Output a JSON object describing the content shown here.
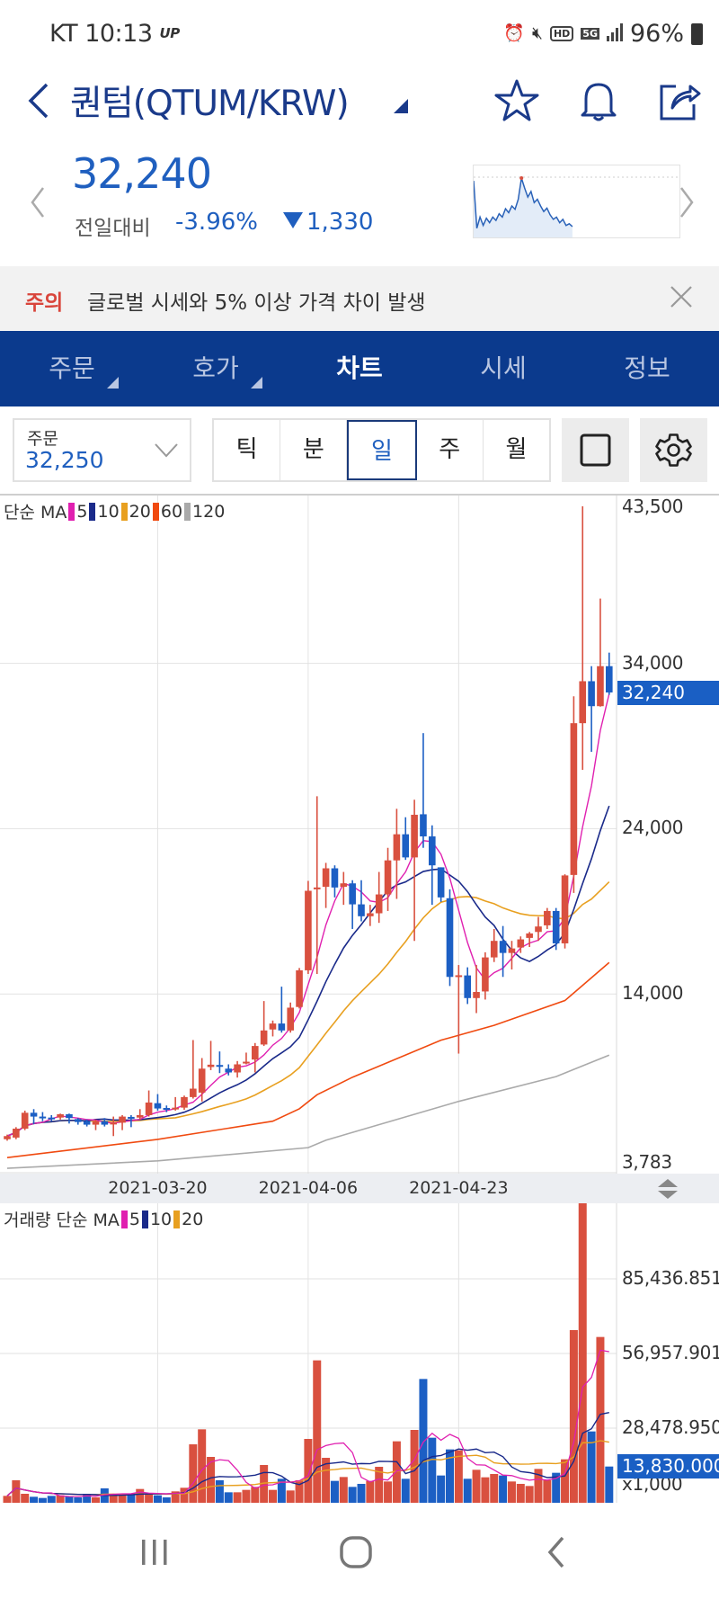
{
  "status_bar": {
    "carrier": "KT",
    "time": "10:13",
    "badge": "UP",
    "battery": "96%",
    "icons": [
      "alarm-icon",
      "mute-icon",
      "hd-icon",
      "5g-icon",
      "signal-icon",
      "battery-icon"
    ],
    "hd_label": "HD",
    "network_label": "5G"
  },
  "header": {
    "title": "퀀텀(QTUM/KRW)"
  },
  "quote": {
    "price": "32,240",
    "change_label": "전일대비",
    "change_pct": "-3.96%",
    "change_abs": "1,330",
    "direction": "down",
    "sparkline": [
      0.95,
      0.1,
      0.3,
      0.15,
      0.28,
      0.2,
      0.3,
      0.24,
      0.36,
      0.3,
      0.45,
      0.38,
      0.5,
      0.44,
      0.62,
      1.0,
      0.82,
      0.66,
      0.76,
      0.56,
      0.62,
      0.5,
      0.4,
      0.46,
      0.34,
      0.26,
      0.3,
      0.2,
      0.26,
      0.15,
      0.18,
      0.13
    ],
    "sparkline_fill": 0.48
  },
  "notice": {
    "tag": "주의",
    "message": "글로벌 시세와 5% 이상 가격 차이 발생"
  },
  "tabs": [
    {
      "label": "주문",
      "has_menu": true
    },
    {
      "label": "호가",
      "has_menu": true
    },
    {
      "label": "차트",
      "active": true
    },
    {
      "label": "시세"
    },
    {
      "label": "정보"
    }
  ],
  "toolbar": {
    "order_label": "주문",
    "order_value": "32,250",
    "periods": [
      "틱",
      "분",
      "일",
      "주",
      "월"
    ],
    "active_period": "일"
  },
  "colors": {
    "up": "#d9503f",
    "down": "#1c5fc4",
    "ma5": "#e020b0",
    "ma10": "#1a2a8a",
    "ma20": "#e8a020",
    "ma60": "#f04a10",
    "ma120": "#aaaaaa",
    "accent": "#0b3a8d"
  },
  "chart_data": [
    {
      "type": "candlestick",
      "legend_title": "단순 MA",
      "legend": [
        {
          "label": "5",
          "key": "ma5"
        },
        {
          "label": "10",
          "key": "ma10"
        },
        {
          "label": "20",
          "key": "ma20"
        },
        {
          "label": "60",
          "key": "ma60"
        },
        {
          "label": "120",
          "key": "ma120"
        }
      ],
      "ylim": [
        3129,
        44154
      ],
      "y_ticks": [
        {
          "label": "43,500",
          "value": 43500
        },
        {
          "label": "34,000",
          "value": 34000
        },
        {
          "label": "24,000",
          "value": 24000
        },
        {
          "label": "14,000",
          "value": 14000
        },
        {
          "label": "3,783",
          "value": 3783
        }
      ],
      "grid_values": [
        34000,
        24000,
        14000
      ],
      "current_label": "32,240",
      "current_value": 32240,
      "x_labels": [
        {
          "label": "2021-03-20",
          "index": 17
        },
        {
          "label": "2021-04-06",
          "index": 34
        },
        {
          "label": "2021-04-23",
          "index": 51
        }
      ],
      "ohlc": [
        [
          5210,
          5490,
          5120,
          5400
        ],
        [
          5310,
          5940,
          5210,
          5850
        ],
        [
          5850,
          6940,
          5760,
          6810
        ],
        [
          6810,
          7030,
          6120,
          6580
        ],
        [
          6580,
          6850,
          6300,
          6520
        ],
        [
          6520,
          6670,
          6300,
          6450
        ],
        [
          6520,
          6760,
          6400,
          6720
        ],
        [
          6720,
          6760,
          6160,
          6490
        ],
        [
          6430,
          6490,
          6090,
          6250
        ],
        [
          6300,
          6400,
          5980,
          6090
        ],
        [
          6090,
          6400,
          5760,
          6300
        ],
        [
          6300,
          6490,
          5980,
          6090
        ],
        [
          6120,
          6580,
          5400,
          6210
        ],
        [
          6210,
          6670,
          5760,
          6580
        ],
        [
          6560,
          6670,
          5940,
          6490
        ],
        [
          6520,
          7030,
          6400,
          6670
        ],
        [
          6670,
          8160,
          6580,
          7430
        ],
        [
          7390,
          7940,
          6940,
          7070
        ],
        [
          7100,
          7250,
          6850,
          7030
        ],
        [
          7030,
          7760,
          6940,
          7120
        ],
        [
          7120,
          7850,
          6990,
          7760
        ],
        [
          7760,
          11210,
          7670,
          8270
        ],
        [
          8030,
          10120,
          7490,
          9480
        ],
        [
          9580,
          11160,
          9390,
          9720
        ],
        [
          9700,
          10520,
          9210,
          9630
        ],
        [
          9480,
          9740,
          9070,
          9250
        ],
        [
          9250,
          9940,
          8940,
          9740
        ],
        [
          9790,
          10450,
          9740,
          9900
        ],
        [
          10030,
          11030,
          9250,
          10850
        ],
        [
          10940,
          13570,
          10850,
          11790
        ],
        [
          11850,
          12390,
          11430,
          12210
        ],
        [
          12210,
          14440,
          11660,
          11790
        ],
        [
          11790,
          13480,
          11660,
          13170
        ],
        [
          13210,
          15570,
          13120,
          15430
        ],
        [
          15430,
          20840,
          15210,
          20240
        ],
        [
          20330,
          25960,
          15210,
          20440
        ],
        [
          20480,
          21930,
          19200,
          21600
        ],
        [
          21600,
          21780,
          19840,
          20440
        ],
        [
          20480,
          21380,
          19390,
          20690
        ],
        [
          20690,
          20880,
          17930,
          19420
        ],
        [
          19420,
          20880,
          18390,
          18700
        ],
        [
          18700,
          19390,
          18110,
          18880
        ],
        [
          18880,
          21380,
          18300,
          20020
        ],
        [
          20020,
          22840,
          19020,
          22080
        ],
        [
          22080,
          25200,
          19750,
          23660
        ],
        [
          23660,
          24690,
          22110,
          22260
        ],
        [
          22260,
          25750,
          17210,
          24840
        ],
        [
          24870,
          29780,
          22840,
          23530
        ],
        [
          23530,
          24200,
          19390,
          21780
        ],
        [
          21660,
          21660,
          19570,
          19840
        ],
        [
          19790,
          20330,
          14480,
          15030
        ],
        [
          15060,
          15750,
          10390,
          15130
        ],
        [
          15120,
          15610,
          13390,
          13750
        ],
        [
          13750,
          15750,
          12840,
          14120
        ],
        [
          14150,
          16520,
          13660,
          16210
        ],
        [
          16210,
          17930,
          15930,
          17210
        ],
        [
          17210,
          18110,
          15030,
          16480
        ],
        [
          16480,
          17210,
          15480,
          16750
        ],
        [
          16810,
          17480,
          16480,
          17300
        ],
        [
          17390,
          17750,
          16840,
          17660
        ],
        [
          17750,
          18660,
          17210,
          18080
        ],
        [
          18150,
          19200,
          17930,
          19020
        ],
        [
          19020,
          19200,
          16660,
          17060
        ],
        [
          17060,
          21240,
          16750,
          21170
        ],
        [
          21200,
          32010,
          20110,
          30380
        ],
        [
          30380,
          43500,
          27560,
          32920
        ],
        [
          32920,
          33830,
          28650,
          31410
        ],
        [
          31410,
          37920,
          31380,
          33830
        ],
        [
          33830,
          34650,
          32100,
          32240
        ]
      ],
      "ma60": [
        [
          0,
          4100
        ],
        [
          17,
          5200
        ],
        [
          30,
          6300
        ],
        [
          33,
          7050
        ],
        [
          35,
          7900
        ],
        [
          39,
          8960
        ],
        [
          49,
          11200
        ],
        [
          55,
          12100
        ],
        [
          63,
          13600
        ],
        [
          68,
          15900
        ]
      ],
      "ma120": [
        [
          0,
          3450
        ],
        [
          17,
          3900
        ],
        [
          34,
          4700
        ],
        [
          36,
          5150
        ],
        [
          51,
          7500
        ],
        [
          62,
          9000
        ],
        [
          68,
          10300
        ]
      ]
    },
    {
      "type": "bar",
      "legend_title": "거래량 단순 MA",
      "legend": [
        {
          "label": "5",
          "key": "ma5"
        },
        {
          "label": "10",
          "key": "ma10"
        },
        {
          "label": "20",
          "key": "ma20"
        }
      ],
      "unit_label": "x1,000",
      "ylim": [
        0,
        114250
      ],
      "y_ticks": [
        {
          "label": "85,436.851",
          "value": 85436.851
        },
        {
          "label": "56,957.901",
          "value": 56957.901
        },
        {
          "label": "28,478.950",
          "value": 28478.95
        }
      ],
      "current_label": "13,830.000",
      "current_value": 13830,
      "values": [
        2630,
        8580,
        3430,
        2290,
        1830,
        2630,
        2860,
        2400,
        2060,
        3200,
        2060,
        5490,
        3430,
        2860,
        3430,
        5260,
        3430,
        2860,
        2060,
        4350,
        5720,
        22300,
        28020,
        17500,
        8580,
        4000,
        4000,
        4920,
        6060,
        14410,
        4920,
        9150,
        4690,
        8580,
        24360,
        54330,
        17150,
        8350,
        9830,
        6060,
        7210,
        8350,
        13720,
        8120,
        23450,
        9150,
        27790,
        47230,
        24820,
        10410,
        20360,
        20020,
        9150,
        12580,
        9720,
        10980,
        10410,
        8120,
        7210,
        6400,
        12920,
        8580,
        11440,
        16580,
        65880,
        118000,
        27220,
        63250,
        13830
      ]
    }
  ]
}
